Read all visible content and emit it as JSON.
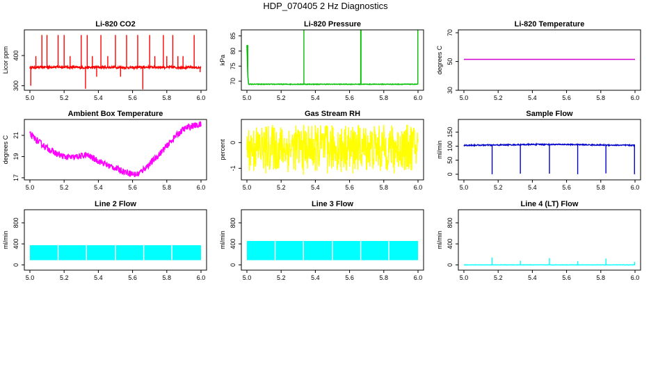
{
  "figure": {
    "title": "HDP_070405  2 Hz Diagnostics"
  },
  "chart_data": [
    {
      "type": "line",
      "title": "Li-820 CO2",
      "ylabel": "Licor ppm",
      "color": "#ff0000",
      "xlim": [
        5.0,
        6.0
      ],
      "ylim": [
        285,
        485
      ],
      "xticks": [
        "5.0",
        "5.2",
        "5.4",
        "5.6",
        "5.8",
        "6.0"
      ],
      "yticks": [
        300,
        400
      ],
      "series": [
        {
          "x": [
            5.0,
            5.1,
            5.2,
            5.3,
            5.4,
            5.5,
            5.6,
            5.7,
            5.8,
            5.9,
            6.0
          ],
          "y": [
            360,
            362,
            362,
            360,
            361,
            361,
            360,
            362,
            361,
            361,
            360
          ]
        }
      ],
      "noise": 4,
      "spikes": [
        {
          "x": 5.005,
          "y": 300
        },
        {
          "x": 5.035,
          "y": 398
        },
        {
          "x": 5.07,
          "y": 468
        },
        {
          "x": 5.1,
          "y": 468
        },
        {
          "x": 5.165,
          "y": 468
        },
        {
          "x": 5.2,
          "y": 468
        },
        {
          "x": 5.235,
          "y": 398
        },
        {
          "x": 5.3,
          "y": 468
        },
        {
          "x": 5.325,
          "y": 290
        },
        {
          "x": 5.335,
          "y": 468
        },
        {
          "x": 5.365,
          "y": 398
        },
        {
          "x": 5.39,
          "y": 330
        },
        {
          "x": 5.415,
          "y": 468
        },
        {
          "x": 5.455,
          "y": 398
        },
        {
          "x": 5.5,
          "y": 468
        },
        {
          "x": 5.53,
          "y": 330
        },
        {
          "x": 5.565,
          "y": 468
        },
        {
          "x": 5.63,
          "y": 468
        },
        {
          "x": 5.66,
          "y": 288
        },
        {
          "x": 5.7,
          "y": 468
        },
        {
          "x": 5.73,
          "y": 398
        },
        {
          "x": 5.78,
          "y": 468
        },
        {
          "x": 5.8,
          "y": 398
        },
        {
          "x": 5.835,
          "y": 468
        },
        {
          "x": 5.865,
          "y": 398
        },
        {
          "x": 5.895,
          "y": 398
        },
        {
          "x": 5.96,
          "y": 468
        },
        {
          "x": 5.995,
          "y": 345
        }
      ]
    },
    {
      "type": "line",
      "title": "Li-820 Pressure",
      "ylabel": "kPa",
      "color": "#00c000",
      "xlim": [
        5.0,
        6.0
      ],
      "ylim": [
        67,
        87
      ],
      "xticks": [
        "5.0",
        "5.2",
        "5.4",
        "5.6",
        "5.8",
        "6.0"
      ],
      "yticks": [
        70,
        75,
        80,
        85
      ],
      "series": [
        {
          "x": [
            5.0,
            5.005,
            5.01,
            5.2,
            5.4,
            5.6,
            5.8,
            6.0
          ],
          "y": [
            82,
            72,
            69,
            69,
            69,
            69,
            69,
            69
          ]
        }
      ],
      "noise": 0.1,
      "spikes": [
        {
          "x": 5.333,
          "y": 87
        },
        {
          "x": 5.665,
          "y": 87
        },
        {
          "x": 5.667,
          "y": 87
        },
        {
          "x": 5.999,
          "y": 87
        },
        {
          "x": 5.005,
          "y": 82
        }
      ]
    },
    {
      "type": "line",
      "title": "Li-820 Temperature",
      "ylabel": "degrees C",
      "color": "#d000d0",
      "xlim": [
        5.0,
        6.0
      ],
      "ylim": [
        30,
        72
      ],
      "xticks": [
        "5.0",
        "5.2",
        "5.4",
        "5.6",
        "5.8",
        "6.0"
      ],
      "yticks": [
        30,
        50,
        70
      ],
      "series": [
        {
          "x": [
            5.0,
            6.0
          ],
          "y": [
            51.5,
            51.5
          ]
        }
      ],
      "noise": 0,
      "spikes": []
    },
    {
      "type": "line",
      "title": "Ambient Box Temperature",
      "ylabel": "degrees C",
      "color": "#ff00ff",
      "xlim": [
        5.0,
        6.0
      ],
      "ylim": [
        16.8,
        22.5
      ],
      "xticks": [
        "5.0",
        "5.2",
        "5.4",
        "5.6",
        "5.8",
        "6.0"
      ],
      "yticks": [
        17,
        19,
        21
      ],
      "series": [
        {
          "x": [
            5.0,
            5.05,
            5.1,
            5.15,
            5.2,
            5.25,
            5.3,
            5.33,
            5.35,
            5.4,
            5.45,
            5.5,
            5.55,
            5.6,
            5.63,
            5.65,
            5.7,
            5.75,
            5.8,
            5.85,
            5.9,
            5.95,
            6.0
          ],
          "y": [
            21.1,
            20.4,
            19.8,
            19.3,
            19.0,
            18.9,
            19.05,
            19.15,
            19.0,
            18.6,
            18.2,
            17.9,
            17.6,
            17.35,
            17.3,
            17.6,
            18.3,
            19.1,
            20.0,
            20.9,
            21.6,
            21.9,
            22.0
          ]
        }
      ],
      "noise": 0.3,
      "spikes": []
    },
    {
      "type": "line",
      "title": "Gas Stream RH",
      "ylabel": "percent",
      "color": "#ffff00",
      "xlim": [
        5.0,
        6.0
      ],
      "ylim": [
        -1.45,
        0.9
      ],
      "xticks": [
        "5.0",
        "5.2",
        "5.4",
        "5.6",
        "5.8",
        "6.0"
      ],
      "yticks": [
        -1.0,
        0.0
      ],
      "series": [
        {
          "x": [
            5.0,
            6.0
          ],
          "y": [
            -0.2,
            -0.2
          ]
        }
      ],
      "noise": 0.9,
      "spikes": [
        {
          "x": 5.04,
          "y": -1.1
        },
        {
          "x": 5.11,
          "y": -1.2
        },
        {
          "x": 5.17,
          "y": -1.05
        },
        {
          "x": 5.24,
          "y": -1.15
        },
        {
          "x": 5.33,
          "y": -1.25
        },
        {
          "x": 5.4,
          "y": -1.1
        },
        {
          "x": 5.47,
          "y": -1.2
        },
        {
          "x": 5.55,
          "y": -1.15
        },
        {
          "x": 5.62,
          "y": -1.2
        },
        {
          "x": 5.7,
          "y": -1.05
        },
        {
          "x": 5.78,
          "y": -1.1
        },
        {
          "x": 5.86,
          "y": -1.2
        },
        {
          "x": 5.93,
          "y": -1.05
        }
      ]
    },
    {
      "type": "line",
      "title": "Sample Flow",
      "ylabel": "ml/min",
      "color": "#0000cd",
      "xlim": [
        5.0,
        6.0
      ],
      "ylim": [
        -20,
        195
      ],
      "xticks": [
        "5.0",
        "5.2",
        "5.4",
        "5.6",
        "5.8",
        "6.0"
      ],
      "yticks": [
        0,
        50,
        100,
        150
      ],
      "series": [
        {
          "x": [
            5.0,
            5.2,
            5.4,
            5.6,
            5.8,
            6.0
          ],
          "y": [
            103,
            104,
            106,
            106,
            104,
            103
          ]
        }
      ],
      "noise": 2,
      "spikes": [
        {
          "x": 5.165,
          "y": 0
        },
        {
          "x": 5.33,
          "y": 2
        },
        {
          "x": 5.5,
          "y": 2
        },
        {
          "x": 5.665,
          "y": 0
        },
        {
          "x": 5.83,
          "y": 3
        },
        {
          "x": 5.997,
          "y": 0
        }
      ]
    },
    {
      "type": "area",
      "title": "Line 2 Flow",
      "ylabel": "ml/min",
      "color": "#00ffff",
      "xlim": [
        5.0,
        6.0
      ],
      "ylim": [
        -100,
        1050
      ],
      "xticks": [
        "5.0",
        "5.2",
        "5.4",
        "5.6",
        "5.8",
        "6.0"
      ],
      "yticks": [
        0,
        400,
        800
      ],
      "series": [
        {
          "x": [
            5.0,
            6.0
          ],
          "low": [
            90,
            90
          ],
          "high": [
            375,
            375
          ]
        }
      ],
      "gaps": [
        5.165,
        5.33,
        5.5,
        5.665,
        5.83
      ]
    },
    {
      "type": "area",
      "title": "Line 3 Flow",
      "ylabel": "ml/min",
      "color": "#00ffff",
      "xlim": [
        5.0,
        6.0
      ],
      "ylim": [
        -100,
        1050
      ],
      "xticks": [
        "5.0",
        "5.2",
        "5.4",
        "5.6",
        "5.8",
        "6.0"
      ],
      "yticks": [
        0,
        400,
        800
      ],
      "series": [
        {
          "x": [
            5.0,
            6.0
          ],
          "low": [
            90,
            90
          ],
          "high": [
            455,
            455
          ]
        }
      ],
      "gaps": [
        5.165,
        5.33,
        5.5,
        5.665,
        5.83
      ]
    },
    {
      "type": "line",
      "title": "Line 4 (LT) Flow",
      "ylabel": "ml/min",
      "color": "#00ffff",
      "xlim": [
        5.0,
        6.0
      ],
      "ylim": [
        -100,
        1050
      ],
      "xticks": [
        "5.0",
        "5.2",
        "5.4",
        "5.6",
        "5.8",
        "6.0"
      ],
      "yticks": [
        0,
        400,
        800
      ],
      "series": [
        {
          "x": [
            5.0,
            6.0
          ],
          "y": [
            0,
            0
          ]
        }
      ],
      "noise": 3,
      "spikes": [
        {
          "x": 5.165,
          "y": 140
        },
        {
          "x": 5.33,
          "y": 80
        },
        {
          "x": 5.5,
          "y": 130
        },
        {
          "x": 5.665,
          "y": 70
        },
        {
          "x": 5.83,
          "y": 120
        },
        {
          "x": 5.997,
          "y": 60
        }
      ]
    }
  ]
}
